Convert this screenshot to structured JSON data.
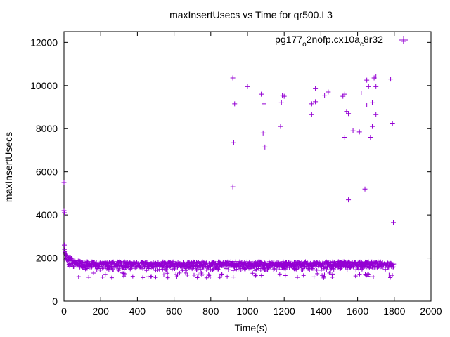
{
  "chart_data": {
    "type": "scatter",
    "title": "maxInsertUsecs vs Time for qr500.L3",
    "xlabel": "Time(s)",
    "ylabel": "maxInsertUsecs",
    "xlim": [
      0,
      2000
    ],
    "ylim": [
      0,
      12500
    ],
    "x_ticks": [
      0,
      200,
      400,
      600,
      800,
      1000,
      1200,
      1400,
      1600,
      1800,
      2000
    ],
    "y_ticks": [
      0,
      2000,
      4000,
      6000,
      8000,
      10000,
      12000
    ],
    "legend": {
      "position": "top-right",
      "label_main": "pg177",
      "label_sub1": "o",
      "label_mid": "2nofp.cx10a",
      "label_sub2": "c",
      "label_tail": "8r32"
    },
    "marker": "plus",
    "color": "#9400d3",
    "series": [
      {
        "name": "pg177_o2nofp.cx10a_c8r32",
        "points": [
          [
            0,
            5500
          ],
          [
            0,
            4200
          ],
          [
            2,
            4100
          ],
          [
            2,
            2600
          ],
          [
            4,
            2400
          ],
          [
            6,
            2300
          ],
          [
            920,
            10350
          ],
          [
            1000,
            9950
          ],
          [
            1075,
            9600
          ],
          [
            1190,
            9550
          ],
          [
            1200,
            9500
          ],
          [
            1370,
            9850
          ],
          [
            1420,
            9550
          ],
          [
            1440,
            9700
          ],
          [
            1520,
            9500
          ],
          [
            1530,
            9600
          ],
          [
            1620,
            9650
          ],
          [
            1650,
            10250
          ],
          [
            1660,
            9950
          ],
          [
            1690,
            10350
          ],
          [
            1700,
            10400
          ],
          [
            1700,
            9950
          ],
          [
            1780,
            10300
          ],
          [
            1850,
            12050
          ],
          [
            930,
            9150
          ],
          [
            1090,
            9150
          ],
          [
            1185,
            9200
          ],
          [
            1350,
            9150
          ],
          [
            1370,
            9250
          ],
          [
            1540,
            8800
          ],
          [
            1550,
            8700
          ],
          [
            1650,
            9100
          ],
          [
            1680,
            9200
          ],
          [
            1700,
            8650
          ],
          [
            1350,
            8650
          ],
          [
            1790,
            8250
          ],
          [
            1180,
            8100
          ],
          [
            1575,
            7900
          ],
          [
            1610,
            7850
          ],
          [
            1680,
            8100
          ],
          [
            1085,
            7800
          ],
          [
            1530,
            7600
          ],
          [
            1670,
            7600
          ],
          [
            925,
            7350
          ],
          [
            1095,
            7150
          ],
          [
            920,
            5300
          ],
          [
            1640,
            5200
          ],
          [
            1550,
            4700
          ],
          [
            1795,
            3650
          ]
        ]
      }
    ]
  }
}
